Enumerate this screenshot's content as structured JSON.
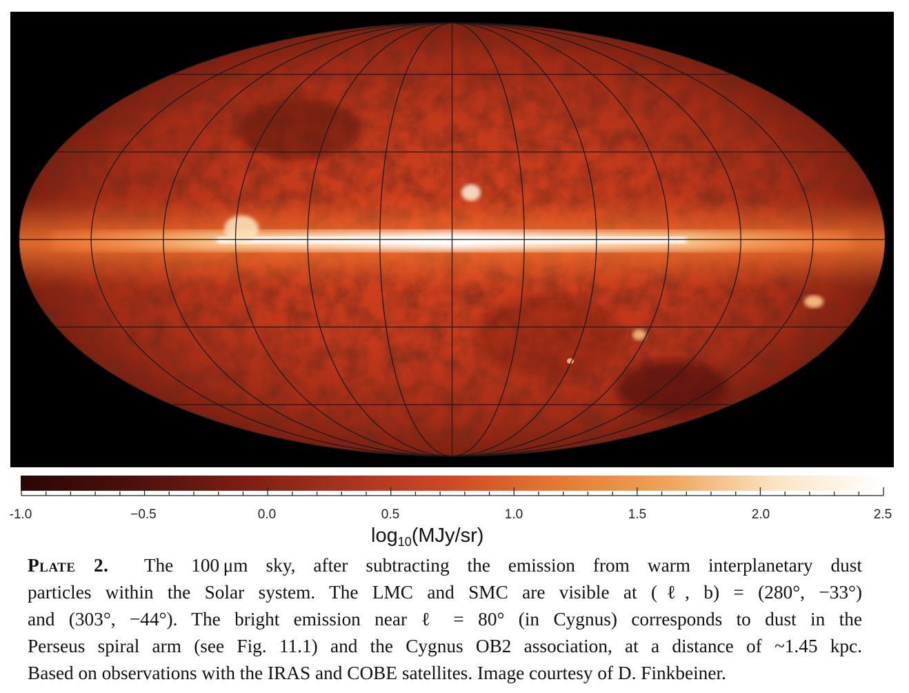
{
  "figure": {
    "colors": {
      "background": "#000000",
      "dark": "#3a0a06",
      "mid": "#b8301a",
      "bright": "#f05a24",
      "hot": "#fff6e8",
      "grid": "#1a1a1a"
    }
  },
  "colorbar": {
    "ticks": [
      "-1.0",
      "−0.5",
      "0.0",
      "0.5",
      "1.0",
      "1.5",
      "2.0",
      "2.5"
    ],
    "unit_prefix": "log",
    "unit_sub": "10",
    "unit_suffix": "(MJy/sr)",
    "stops": [
      "#2a0605",
      "#4a100c",
      "#7a1c14",
      "#a8321f",
      "#cf4a25",
      "#e57a32",
      "#efa45a",
      "#fbe4c4",
      "#ffffff"
    ]
  },
  "caption": {
    "label": "Plate 2.",
    "lines": [
      "The 100 μm sky, after subtracting the emission from warm interplanetary dust",
      "particles within the Solar system.  The LMC and SMC are visible at (ℓ, b) = (280°, −33°)",
      "and (303°, −44°).  The bright emission near ℓ = 80° (in Cygnus) corresponds to dust in the",
      "Perseus spiral arm (see Fig. 11.1) and the Cygnus OB2 association, at a distance of ~1.45 kpc.",
      "Based on observations with the IRAS and COBE satellites. Image courtesy of D. Finkbeiner."
    ]
  }
}
